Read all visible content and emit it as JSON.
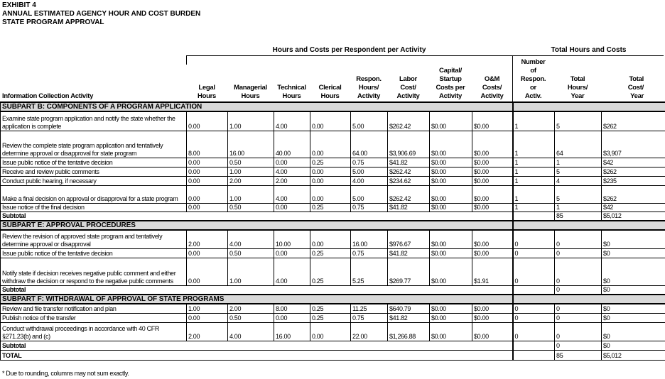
{
  "title_lines": [
    "EXHIBIT 4",
    "ANNUAL ESTIMATED AGENCY HOUR AND COST BURDEN",
    "STATE PROGRAM APPROVAL"
  ],
  "group_headers": {
    "per_activity": "Hours and Costs per Respondent per Activity",
    "totals": "Total Hours and Costs"
  },
  "columns": [
    [
      "Information Collection Activity"
    ],
    [
      "Legal",
      "Hours"
    ],
    [
      "Managerial",
      "Hours"
    ],
    [
      "Technical",
      "Hours"
    ],
    [
      "Clerical",
      "Hours"
    ],
    [
      "Respon.",
      "Hours/",
      "Activity"
    ],
    [
      "Labor",
      "Cost/",
      "Activity"
    ],
    [
      "Capital/",
      "Startup",
      "Costs per",
      "Activity"
    ],
    [
      "O&M",
      "Costs/",
      "Activity"
    ],
    [
      "Number",
      "of",
      "Respon.",
      "or",
      "Activ."
    ],
    [
      "Total",
      "Hours/",
      "Year"
    ],
    [
      "Total",
      "Cost/",
      "Year"
    ]
  ],
  "sections": [
    {
      "title": "SUBPART B: COMPONENTS OF A PROGRAM APPLICATION",
      "rows": [
        {
          "activity": "Examine state program application and notify the state whether the application is complete",
          "values": [
            "0.00",
            "1.00",
            "4.00",
            "0.00",
            "5.00",
            "$262.42",
            "$0.00",
            "$0.00",
            "1",
            "5",
            "$262"
          ]
        },
        {
          "activity": "Review the complete state program application and tentatively determine approval or disapproval for state program",
          "values": [
            "8.00",
            "16.00",
            "40.00",
            "0.00",
            "64.00",
            "$3,906.69",
            "$0.00",
            "$0.00",
            "1",
            "64",
            "$3,907"
          ]
        },
        {
          "activity": "Issue public notice of the tentative decision",
          "values": [
            "0.00",
            "0.50",
            "0.00",
            "0.25",
            "0.75",
            "$41.82",
            "$0.00",
            "$0.00",
            "1",
            "1",
            "$42"
          ]
        },
        {
          "activity": "Receive and review public comments",
          "values": [
            "0.00",
            "1.00",
            "4.00",
            "0.00",
            "5.00",
            "$262.42",
            "$0.00",
            "$0.00",
            "1",
            "5",
            "$262"
          ]
        },
        {
          "activity": "Conduct public hearing, if necessary",
          "values": [
            "0.00",
            "2.00",
            "2.00",
            "0.00",
            "4.00",
            "$234.62",
            "$0.00",
            "$0.00",
            "1",
            "4",
            "$235"
          ]
        },
        {
          "activity": "Make a final decision on approval or disapproval for a state program",
          "values": [
            "0.00",
            "1.00",
            "4.00",
            "0.00",
            "5.00",
            "$262.42",
            "$0.00",
            "$0.00",
            "1",
            "5",
            "$262"
          ]
        },
        {
          "activity": "Issue notice of the final decision",
          "values": [
            "0.00",
            "0.50",
            "0.00",
            "0.25",
            "0.75",
            "$41.82",
            "$0.00",
            "$0.00",
            "1",
            "1",
            "$42"
          ]
        }
      ],
      "subtotal": {
        "label": "Subtotal",
        "hours": "85",
        "cost": "$5,012"
      }
    },
    {
      "title": "SUBPART E: APPROVAL PROCEDURES",
      "rows": [
        {
          "activity": "Review the revision of approved state program and tentatively determine approval or disapproval",
          "values": [
            "2.00",
            "4.00",
            "10.00",
            "0.00",
            "16.00",
            "$976.67",
            "$0.00",
            "$0.00",
            "0",
            "0",
            "$0"
          ]
        },
        {
          "activity": "Issue public notice of the tentative decision",
          "values": [
            "0.00",
            "0.50",
            "0.00",
            "0.25",
            "0.75",
            "$41.82",
            "$0.00",
            "$0.00",
            "0",
            "0",
            "$0"
          ]
        },
        {
          "activity": "Notify state if decision receives negative public comment and either withdraw the decision or respond to the negative public comments",
          "values": [
            "0.00",
            "1.00",
            "4.00",
            "0.25",
            "5.25",
            "$269.77",
            "$0.00",
            "$1.91",
            "0",
            "0",
            "$0"
          ]
        }
      ],
      "subtotal": {
        "label": "Subtotal",
        "hours": "0",
        "cost": "$0"
      }
    },
    {
      "title": "SUBPART F: WITHDRAWAL OF APPROVAL OF STATE PROGRAMS",
      "rows": [
        {
          "activity": "Review and file transfer notification and plan",
          "values": [
            "1.00",
            "2.00",
            "8.00",
            "0.25",
            "11.25",
            "$640.79",
            "$0.00",
            "$0.00",
            "0",
            "0",
            "$0"
          ]
        },
        {
          "activity": "Publish notice of the transfer",
          "values": [
            "0.00",
            "0.50",
            "0.00",
            "0.25",
            "0.75",
            "$41.82",
            "$0.00",
            "$0.00",
            "0",
            "0",
            "$0"
          ]
        },
        {
          "activity": "Conduct withdrawal proceedings in accordance with 40 CFR §271.23(b) and (c)",
          "values": [
            "2.00",
            "4.00",
            "16.00",
            "0.00",
            "22.00",
            "$1,266.88",
            "$0.00",
            "$0.00",
            "0",
            "0",
            "$0"
          ]
        }
      ],
      "subtotal": {
        "label": "Subtotal",
        "hours": "0",
        "cost": "$0"
      }
    }
  ],
  "total": {
    "label": "TOTAL",
    "hours": "85",
    "cost": "$5,012"
  },
  "footnote": "* Due to rounding, columns may not sum exactly."
}
